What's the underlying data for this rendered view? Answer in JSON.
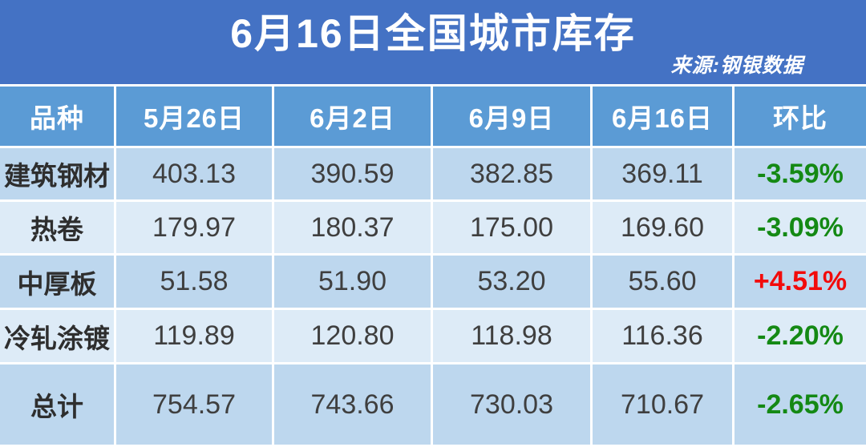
{
  "banner": {
    "title": "6月16日全国城市库存",
    "source": "来源:钢银数据"
  },
  "table": {
    "columns": [
      "品种",
      "5月26日",
      "6月2日",
      "6月9日",
      "6月16日",
      "环比"
    ],
    "rows": [
      {
        "name": "建筑钢材",
        "values": [
          "403.13",
          "390.59",
          "382.85",
          "369.11"
        ],
        "change": "-3.59%",
        "trend": "down"
      },
      {
        "name": "热卷",
        "values": [
          "179.97",
          "180.37",
          "175.00",
          "169.60"
        ],
        "change": "-3.09%",
        "trend": "down"
      },
      {
        "name": "中厚板",
        "values": [
          "51.58",
          "51.90",
          "53.20",
          "55.60"
        ],
        "change": "+4.51%",
        "trend": "up"
      },
      {
        "name": "冷轧涂镀",
        "values": [
          "119.89",
          "120.80",
          "118.98",
          "116.36"
        ],
        "change": "-2.20%",
        "trend": "down"
      },
      {
        "name": "总计",
        "values": [
          "754.57",
          "743.66",
          "730.03",
          "710.67"
        ],
        "change": "-2.65%",
        "trend": "down"
      }
    ]
  },
  "chart_data": {
    "type": "table",
    "title": "6月16日全国城市库存",
    "source": "来源:钢银数据",
    "columns": [
      "品种",
      "5月26日",
      "6月2日",
      "6月9日",
      "6月16日",
      "环比"
    ],
    "rows": [
      [
        "建筑钢材",
        403.13,
        390.59,
        382.85,
        369.11,
        "-3.59%"
      ],
      [
        "热卷",
        179.97,
        180.37,
        175.0,
        169.6,
        "-3.09%"
      ],
      [
        "中厚板",
        51.58,
        51.9,
        53.2,
        55.6,
        "+4.51%"
      ],
      [
        "冷轧涂镀",
        119.89,
        120.8,
        118.98,
        116.36,
        "-2.20%"
      ],
      [
        "总计",
        754.57,
        743.66,
        730.03,
        710.67,
        "-2.65%"
      ]
    ]
  },
  "colors": {
    "banner_bg": "#4472C4",
    "header_bg": "#5B9BD5",
    "row_alt_dark": "#BDD7EE",
    "row_alt_light": "#DDEBF7",
    "value_text": "#3F3F3F",
    "increase_red": "#F20B0B",
    "decrease_green": "#148914"
  }
}
